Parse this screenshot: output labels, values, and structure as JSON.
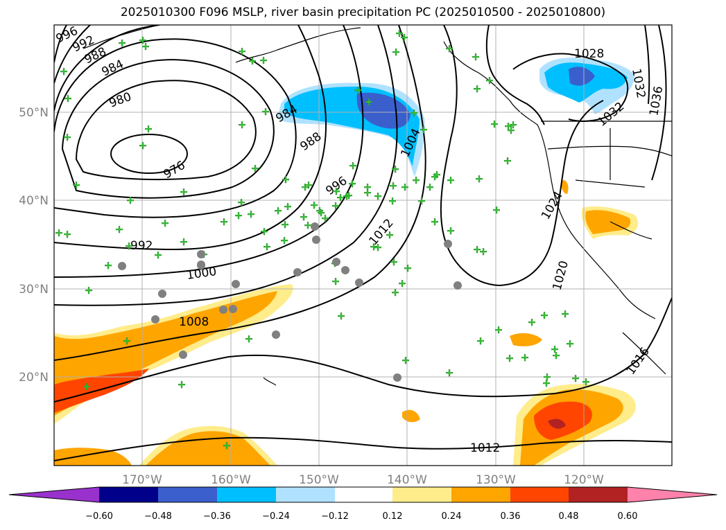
{
  "title": "2025010300 F096 MSLP, river basin precipitation PC (2025010500 - 2025010800)",
  "map": {
    "lon_ticks": [
      "170°W",
      "160°W",
      "150°W",
      "140°W",
      "130°W",
      "120°W"
    ],
    "lat_ticks": [
      "50°N",
      "40°N",
      "30°N",
      "20°N"
    ],
    "isobar_labels": [
      "996",
      "992",
      "988",
      "984",
      "980",
      "976",
      "984",
      "988",
      "996",
      "1004",
      "1012",
      "992",
      "1000",
      "1008",
      "1012",
      "1016",
      "1020",
      "1024",
      "1028",
      "1032",
      "1036",
      "1032"
    ]
  },
  "colorbar": {
    "ticks": [
      "−0.60",
      "−0.48",
      "−0.36",
      "−0.24",
      "−0.12",
      "0.12",
      "0.24",
      "0.36",
      "0.48",
      "0.60"
    ],
    "colors": [
      "#9932cc",
      "#00008b",
      "#3a5fcd",
      "#00bfff",
      "#b0e2ff",
      "#ffffff",
      "#ffec8b",
      "#ffa500",
      "#ff4500",
      "#b22222",
      "#ff82ab"
    ]
  }
}
